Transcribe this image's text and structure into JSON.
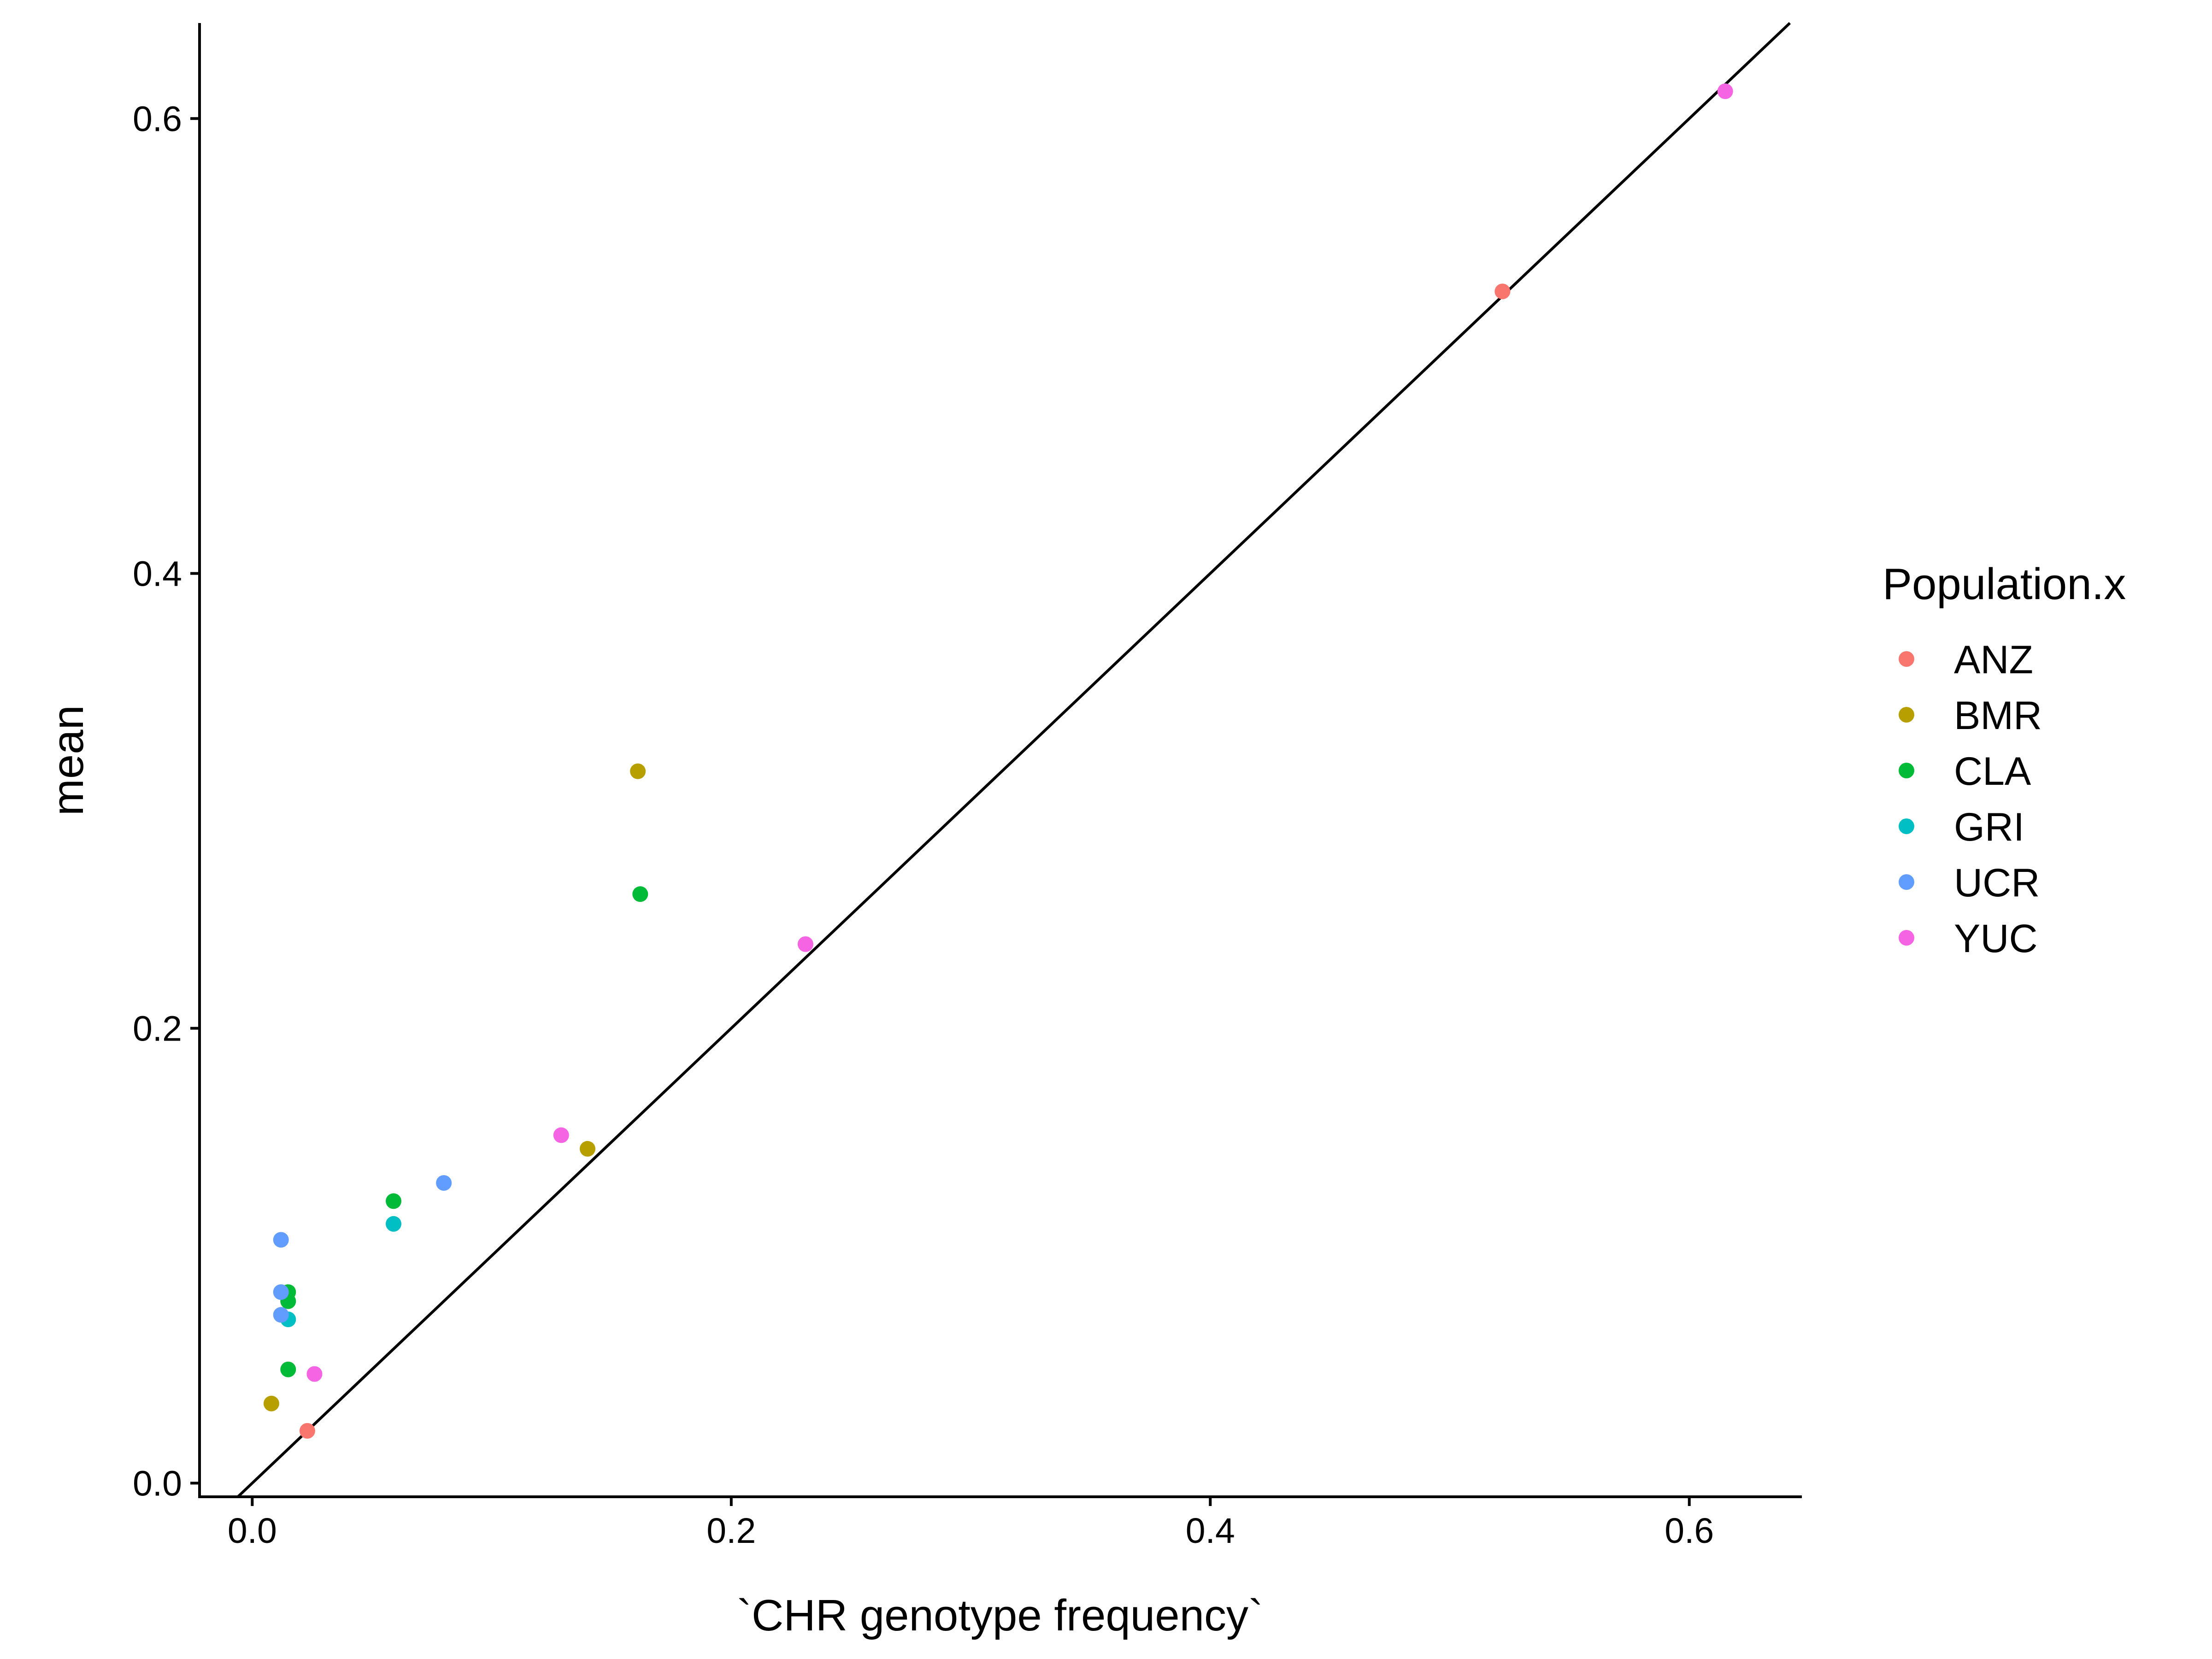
{
  "chart_data": {
    "type": "scatter",
    "xlabel": "`CHR genotype frequency`",
    "ylabel": "mean",
    "xlim": [
      -0.022,
      0.647
    ],
    "ylim": [
      -0.006,
      0.642
    ],
    "x_ticks": [
      0.0,
      0.2,
      0.4,
      0.6
    ],
    "x_tick_labels": [
      "0.0",
      "0.2",
      "0.4",
      "0.6"
    ],
    "y_ticks": [
      0.0,
      0.2,
      0.4,
      0.6
    ],
    "y_tick_labels": [
      "0.0",
      "0.2",
      "0.4",
      "0.6"
    ],
    "grid": false,
    "reference_line": {
      "slope": 1,
      "intercept": 0
    },
    "legend": {
      "title": "Population.x",
      "position": "right"
    },
    "series": [
      {
        "name": "ANZ",
        "color": "#F8766D",
        "points": [
          [
            0.023,
            0.023
          ],
          [
            0.522,
            0.524
          ]
        ]
      },
      {
        "name": "BMR",
        "color": "#B79F00",
        "points": [
          [
            0.008,
            0.035
          ],
          [
            0.14,
            0.147
          ],
          [
            0.161,
            0.313
          ]
        ]
      },
      {
        "name": "CLA",
        "color": "#00BA38",
        "points": [
          [
            0.015,
            0.05
          ],
          [
            0.015,
            0.08
          ],
          [
            0.015,
            0.084
          ],
          [
            0.059,
            0.124
          ],
          [
            0.162,
            0.259
          ]
        ]
      },
      {
        "name": "GRI",
        "color": "#00BFC4",
        "points": [
          [
            0.015,
            0.072
          ],
          [
            0.059,
            0.114
          ]
        ]
      },
      {
        "name": "UCR",
        "color": "#619CFF",
        "points": [
          [
            0.012,
            0.074
          ],
          [
            0.012,
            0.084
          ],
          [
            0.012,
            0.107
          ],
          [
            0.08,
            0.132
          ]
        ]
      },
      {
        "name": "YUC",
        "color": "#F564E3",
        "points": [
          [
            0.026,
            0.048
          ],
          [
            0.129,
            0.153
          ],
          [
            0.231,
            0.237
          ],
          [
            0.615,
            0.612
          ]
        ]
      }
    ]
  }
}
